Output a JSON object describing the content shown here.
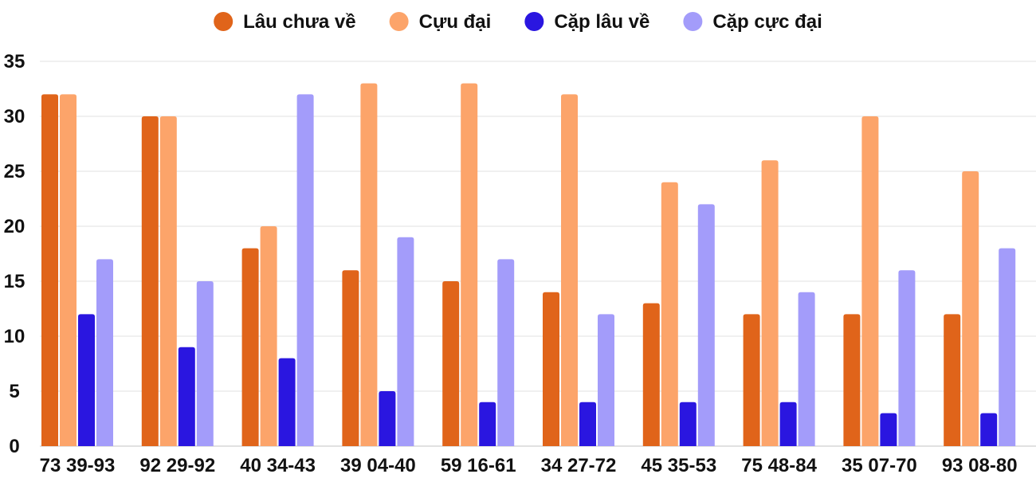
{
  "chart_data": {
    "type": "bar",
    "title": "",
    "xlabel": "",
    "ylabel": "",
    "ylim": [
      0,
      35
    ],
    "yticks": [
      0,
      5,
      10,
      15,
      20,
      25,
      30,
      35
    ],
    "grid": true,
    "legend_position": "top-center",
    "categories": [
      "73 39-93",
      "92 29-92",
      "40 34-43",
      "39 04-40",
      "59 16-61",
      "34 27-72",
      "45 35-53",
      "75 48-84",
      "35 07-70",
      "93 08-80"
    ],
    "series": [
      {
        "name": "Lâu chưa về",
        "color": "#e0641a",
        "values": [
          32,
          30,
          18,
          16,
          15,
          14,
          13,
          12,
          12,
          12
        ]
      },
      {
        "name": "Cựu đại",
        "color": "#fca46a",
        "values": [
          32,
          30,
          20,
          33,
          33,
          32,
          24,
          26,
          30,
          25
        ]
      },
      {
        "name": "Cặp lâu về",
        "color": "#2a16e0",
        "values": [
          12,
          9,
          8,
          5,
          4,
          4,
          4,
          4,
          3,
          3
        ]
      },
      {
        "name": "Cặp cực đại",
        "color": "#a39cfa",
        "values": [
          17,
          15,
          32,
          19,
          17,
          12,
          22,
          14,
          16,
          18
        ]
      }
    ]
  }
}
